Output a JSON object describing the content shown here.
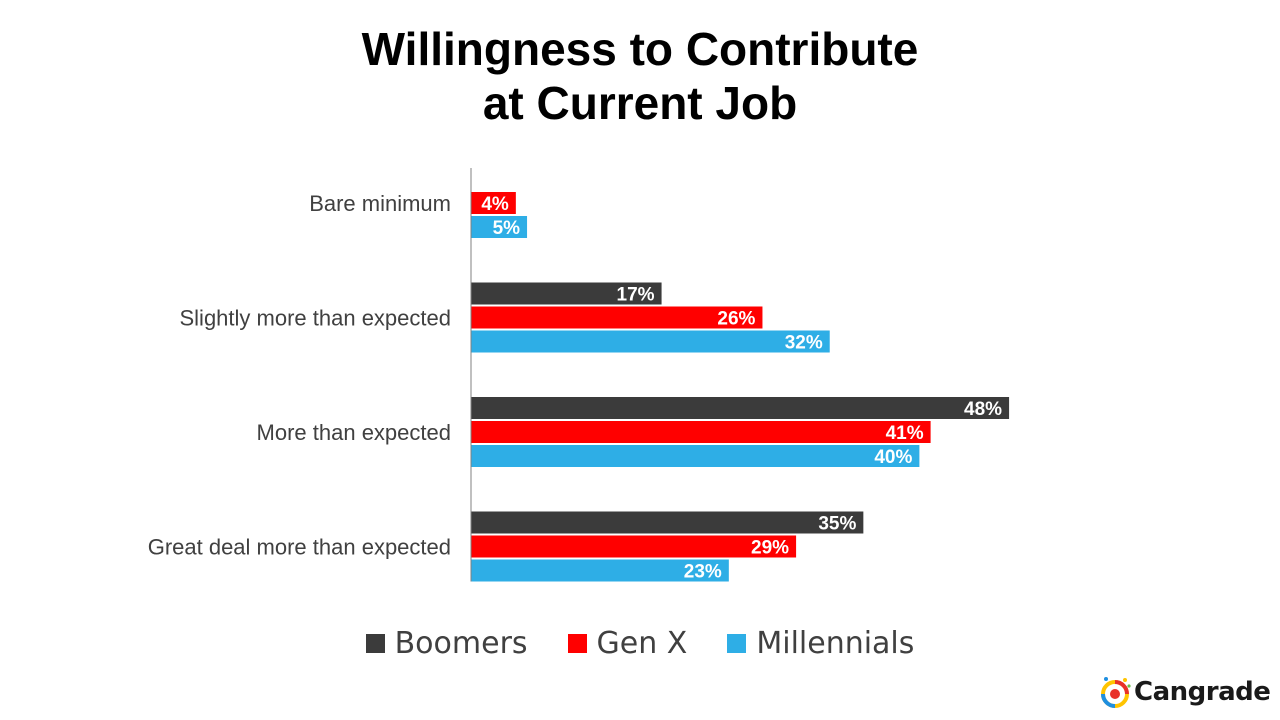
{
  "chart_data": {
    "type": "bar",
    "orientation": "horizontal",
    "title": [
      "Willingness to Contribute",
      "at Current Job"
    ],
    "categories": [
      "Bare minimum",
      "Slightly more than expected",
      "More than expected",
      "Great deal more than expected"
    ],
    "series": [
      {
        "name": "Boomers",
        "color": "#3b3b3b",
        "values": [
          0,
          17,
          48,
          35
        ]
      },
      {
        "name": "Gen X",
        "color": "#ff0000",
        "values": [
          4,
          26,
          41,
          29
        ]
      },
      {
        "name": "Millennials",
        "color": "#2eaee6",
        "values": [
          5,
          32,
          40,
          23
        ]
      }
    ],
    "value_suffix": "%",
    "xlim": [
      0,
      100
    ],
    "grid": false,
    "legend_position": "bottom"
  },
  "brand": {
    "name": "Cangrade"
  }
}
